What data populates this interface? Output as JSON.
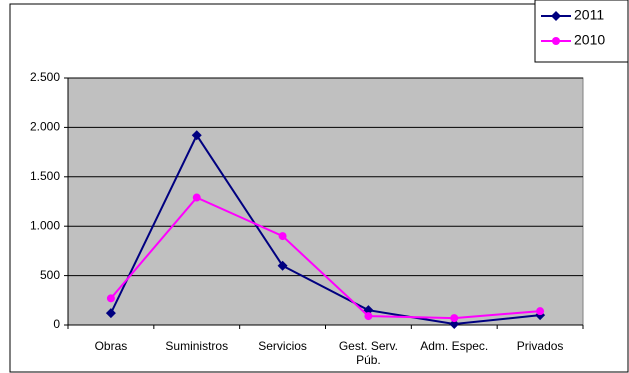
{
  "chart_data": {
    "type": "line",
    "categories": [
      "Obras",
      "Suministros",
      "Servicios",
      "Gest. Serv. Púb.",
      "Adm. Espec.",
      "Privados"
    ],
    "series": [
      {
        "name": "2011",
        "color": "#000080",
        "marker": "diamond",
        "values": [
          120,
          1920,
          600,
          150,
          10,
          100
        ]
      },
      {
        "name": "2010",
        "color": "#ff00ff",
        "marker": "circle",
        "values": [
          270,
          1290,
          900,
          90,
          70,
          140
        ]
      }
    ],
    "ylim": [
      0,
      2500
    ],
    "yticks": [
      0,
      500,
      {
        "value": 1000,
        "label": "1.000"
      },
      {
        "value": 1500,
        "label": "1.500"
      },
      {
        "value": 2000,
        "label": "2.000"
      },
      {
        "value": 2500,
        "label": "2.500"
      }
    ],
    "grid": true,
    "legend": "top-right"
  }
}
